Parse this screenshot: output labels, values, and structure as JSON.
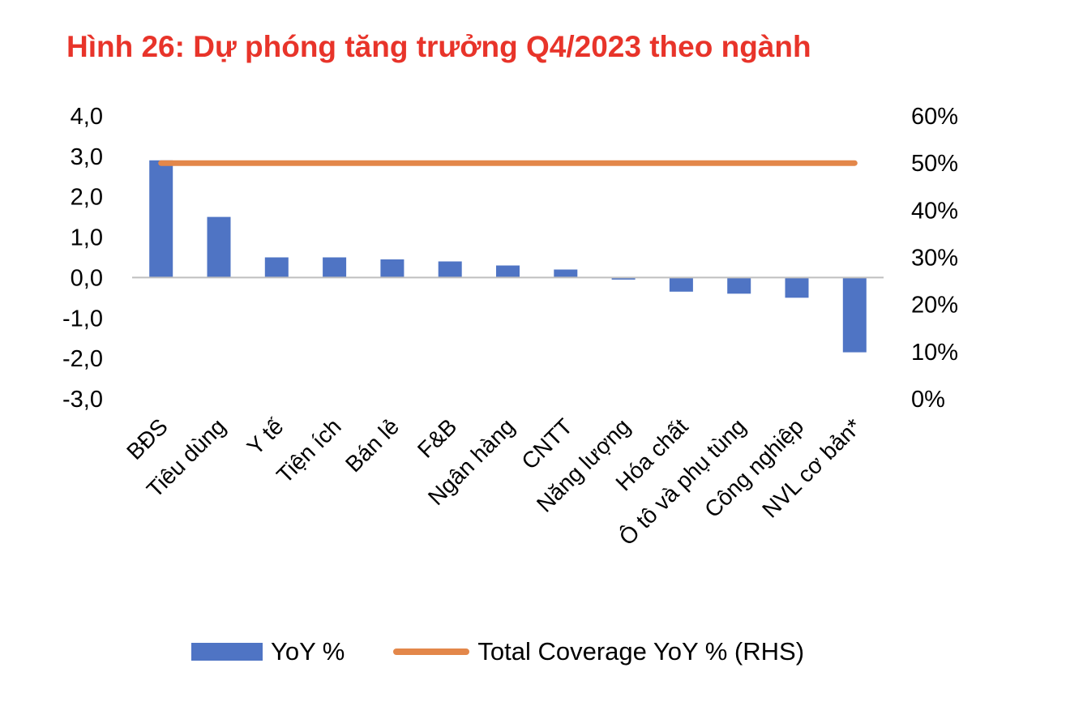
{
  "title": "Hình 26: Dự phóng tăng trưởng Q4/2023 theo ngành",
  "colors": {
    "title": "#E8342A",
    "bar": "#4F74C4",
    "line": "#E3874A",
    "axis": "#BFBFBF",
    "text": "#000000"
  },
  "legend": {
    "bar_label": "YoY %",
    "line_label": "Total Coverage YoY % (RHS)"
  },
  "chart_data": {
    "type": "bar",
    "title": "Hình 26: Dự phóng tăng trưởng Q4/2023 theo ngành",
    "categories": [
      "BĐS",
      "Tiêu dùng",
      "Y tế",
      "Tiện ích",
      "Bán lẻ",
      "F&B",
      "Ngân hàng",
      "CNTT",
      "Năng lượng",
      "Hóa chất",
      "Ô tô và phụ tùng",
      "Công nghiệp",
      "NVL cơ bản*"
    ],
    "series": [
      {
        "name": "YoY %",
        "type": "bar",
        "axis": "left",
        "values": [
          2.9,
          1.5,
          0.5,
          0.5,
          0.45,
          0.4,
          0.3,
          0.2,
          -0.05,
          -0.35,
          -0.4,
          -0.5,
          -1.85
        ]
      },
      {
        "name": "Total Coverage YoY % (RHS)",
        "type": "line",
        "axis": "right",
        "values": [
          50,
          50,
          50,
          50,
          50,
          50,
          50,
          50,
          50,
          50,
          50,
          50,
          50
        ]
      }
    ],
    "y_left": {
      "range": [
        -3.0,
        4.0
      ],
      "ticks": [
        "4,0",
        "3,0",
        "2,0",
        "1,0",
        "0,0",
        "-1,0",
        "-2,0",
        "-3,0"
      ],
      "tick_values": [
        4,
        3,
        2,
        1,
        0,
        -1,
        -2,
        -3
      ]
    },
    "y_right": {
      "range": [
        0,
        60
      ],
      "ticks": [
        "60%",
        "50%",
        "40%",
        "30%",
        "20%",
        "10%",
        "0%"
      ],
      "tick_values": [
        60,
        50,
        40,
        30,
        20,
        10,
        0
      ]
    },
    "grid": false,
    "legend_position": "bottom"
  }
}
